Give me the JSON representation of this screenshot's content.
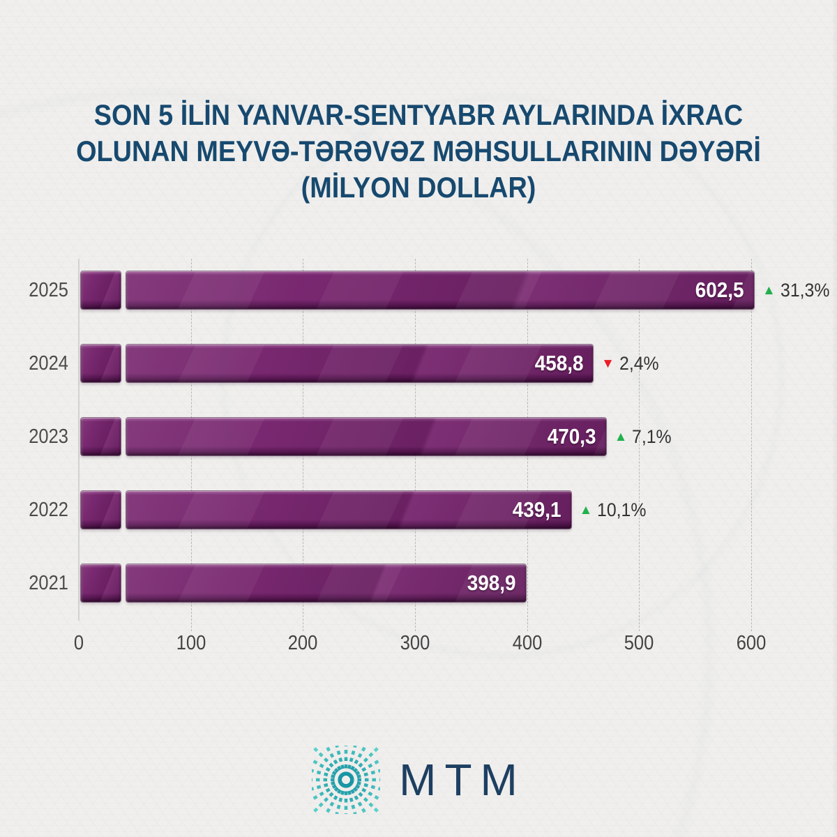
{
  "title": {
    "line1": "SON 5 İLİN YANVAR-SENTYABR AYLARINDA İXRAC",
    "line2": "OLUNAN MEYVƏ-TƏRƏVƏZ MƏHSULLARININ DƏYƏRİ",
    "line3": "(MİLYON DOLLAR)"
  },
  "chart_data": {
    "type": "bar",
    "orientation": "horizontal",
    "title": "SON 5 İLİN YANVAR-SENTYABR AYLARINDA İXRAC OLUNAN MEYVƏ-TƏRƏVƏZ MƏHSULLARININ DƏYƏRİ (MİLYON DOLLAR)",
    "unit": "milyon dollar",
    "categories": [
      "2025",
      "2024",
      "2023",
      "2022",
      "2021"
    ],
    "values": [
      602.5,
      458.8,
      470.3,
      439.1,
      398.9
    ],
    "value_labels": [
      "602,5",
      "458,8",
      "470,3",
      "439,1",
      "398,9"
    ],
    "changes": [
      {
        "direction": "up",
        "label": "31,3%"
      },
      {
        "direction": "down",
        "label": "2,4%"
      },
      {
        "direction": "up",
        "label": "7,1%"
      },
      {
        "direction": "up",
        "label": "10,1%"
      },
      null
    ],
    "xlim": [
      0,
      600
    ],
    "ticks": [
      0,
      100,
      200,
      300,
      400,
      500,
      600
    ],
    "tick_labels": [
      "0",
      "100",
      "200",
      "300",
      "400",
      "500",
      "600"
    ],
    "grid": "dashed-vertical",
    "legend": "none",
    "xlabel": "",
    "ylabel": ""
  },
  "footer": {
    "logo_text": "MTM"
  },
  "colors": {
    "background": "#f0efed",
    "title": "#17496f",
    "bar_body": "#76246d",
    "bar_deep": "#5a1554",
    "bar_highlight": "#a05b99",
    "bar_shadow_edge": "#400d3c",
    "value_text": "#ffffff",
    "up": "#22b14c",
    "down": "#ed1c24",
    "change_text": "#333333",
    "axis_text": "#434341",
    "grid": "#8c8c87",
    "logo_teal_dark": "#0e8c9e",
    "logo_teal_light": "#63d9cf",
    "logo_text": "#1d3f61"
  }
}
